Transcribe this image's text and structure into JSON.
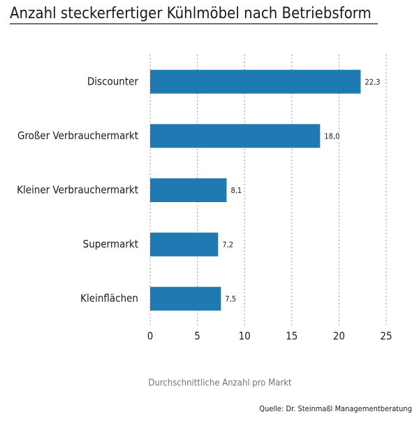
{
  "chart_data": {
    "type": "hbar",
    "title": "Anzahl steckerfertiger Kühlmöbel nach Betriebsform",
    "categories": [
      "Discounter",
      "Großer Verbrauchermarkt",
      "Kleiner Verbrauchermarkt",
      "Supermarkt",
      "Kleinflächen"
    ],
    "values": [
      22.3,
      18.0,
      8.1,
      7.2,
      7.5
    ],
    "value_labels": [
      "22,3",
      "18,0",
      "8,1",
      "7,2",
      "7,5"
    ],
    "color": "#1f7ab3",
    "xlim": [
      0,
      25
    ],
    "xticks": [
      0,
      5,
      10,
      15,
      20,
      25
    ],
    "grid": true,
    "x_label": "Durchschnittliche Anzahl pro Markt",
    "source": "Quelle: Dr. Steinmaßl Managementberatung"
  }
}
